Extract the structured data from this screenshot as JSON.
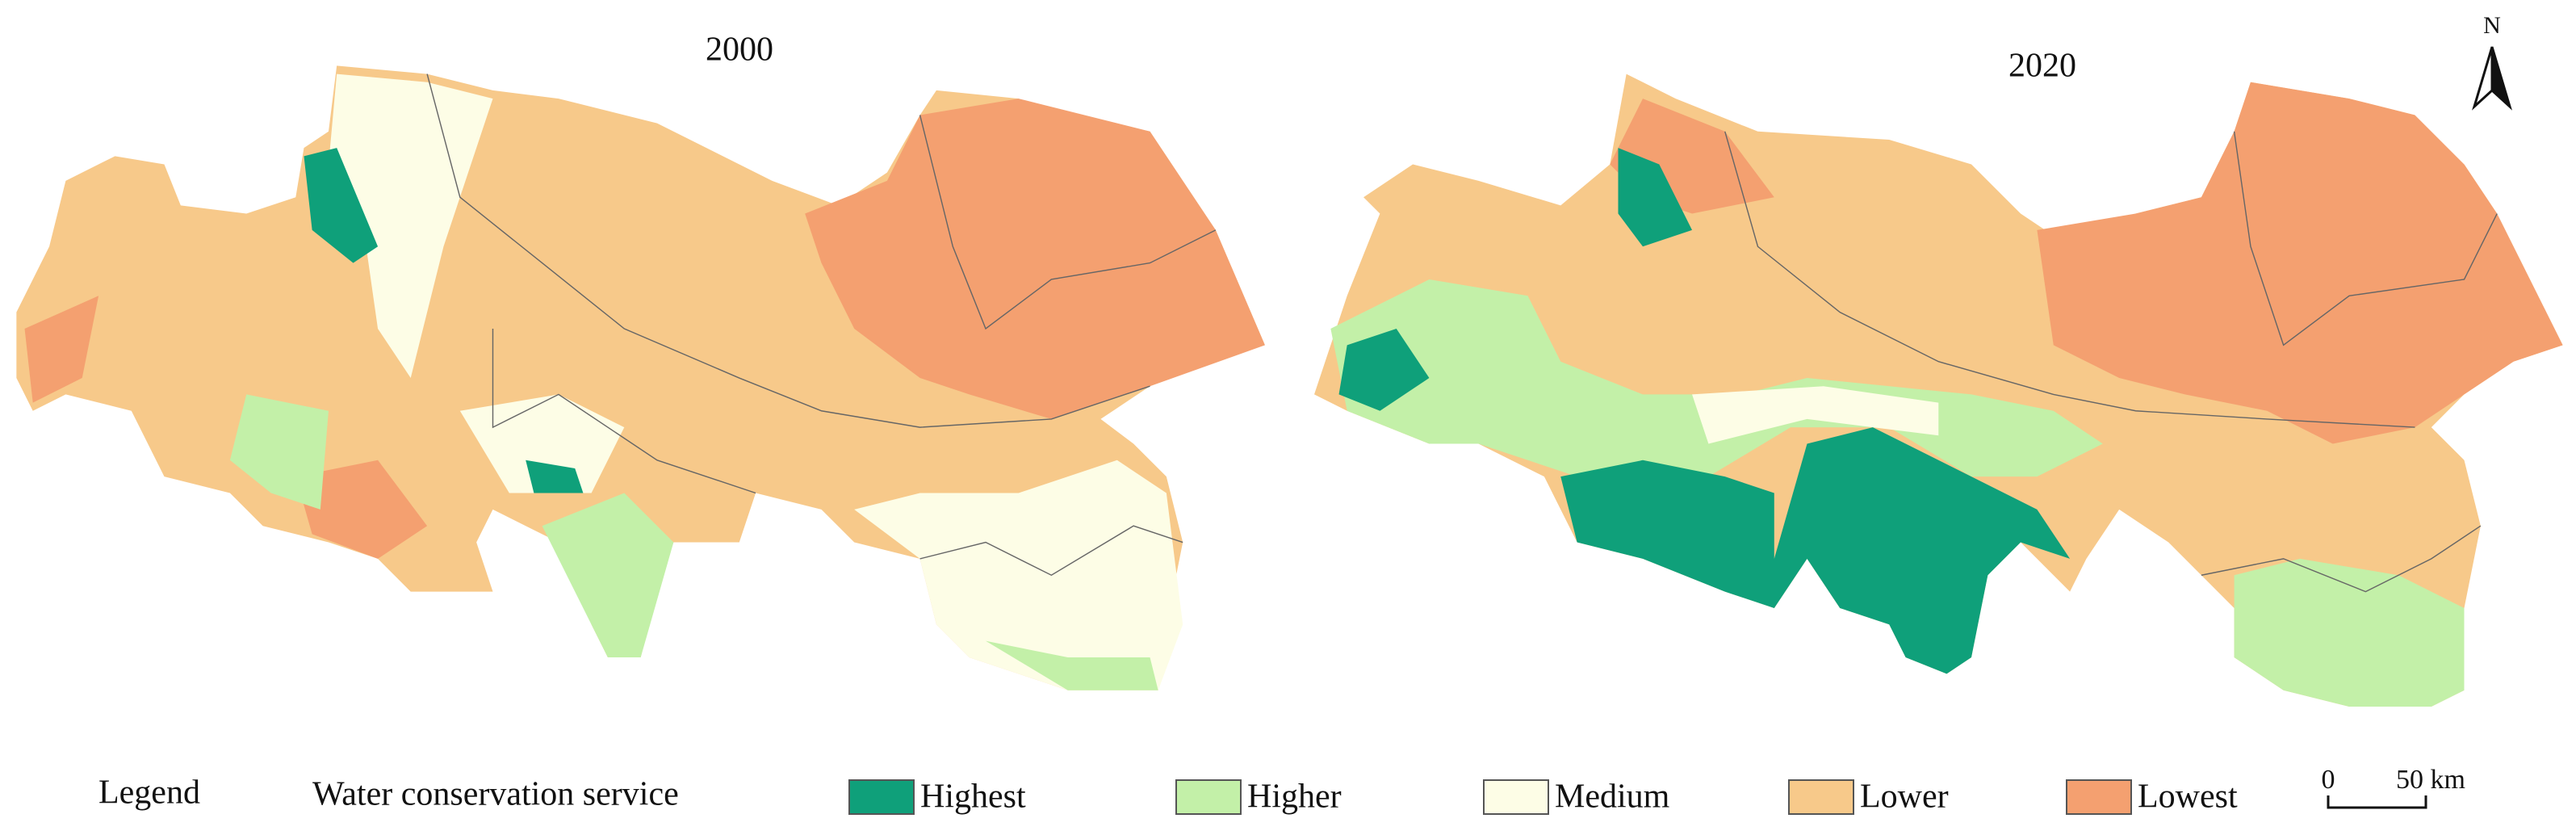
{
  "maps": [
    {
      "title": "2000"
    },
    {
      "title": "2020"
    }
  ],
  "north": "N",
  "legend": {
    "title": "Legend",
    "subtitle": "Water conservation service",
    "items": [
      {
        "label": "Highest",
        "color": "#0fa07a"
      },
      {
        "label": "Higher",
        "color": "#c3f0a8"
      },
      {
        "label": "Medium",
        "color": "#fdfde6"
      },
      {
        "label": "Lower",
        "color": "#f7c98a"
      },
      {
        "label": "Lowest",
        "color": "#f4a070"
      }
    ]
  },
  "scale_bar": {
    "start": "0",
    "end": "50 km"
  }
}
